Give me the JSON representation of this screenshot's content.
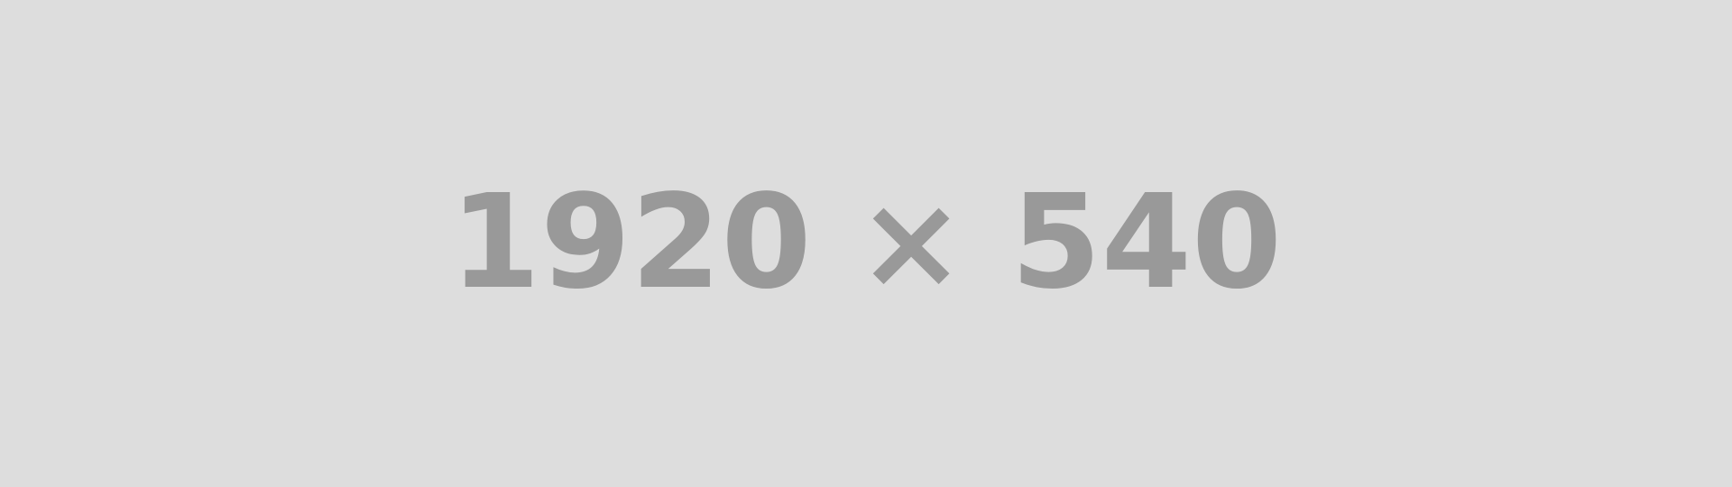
{
  "placeholder": {
    "text": "1920 × 540",
    "background_color": "#dddddd",
    "text_color": "#999999"
  }
}
